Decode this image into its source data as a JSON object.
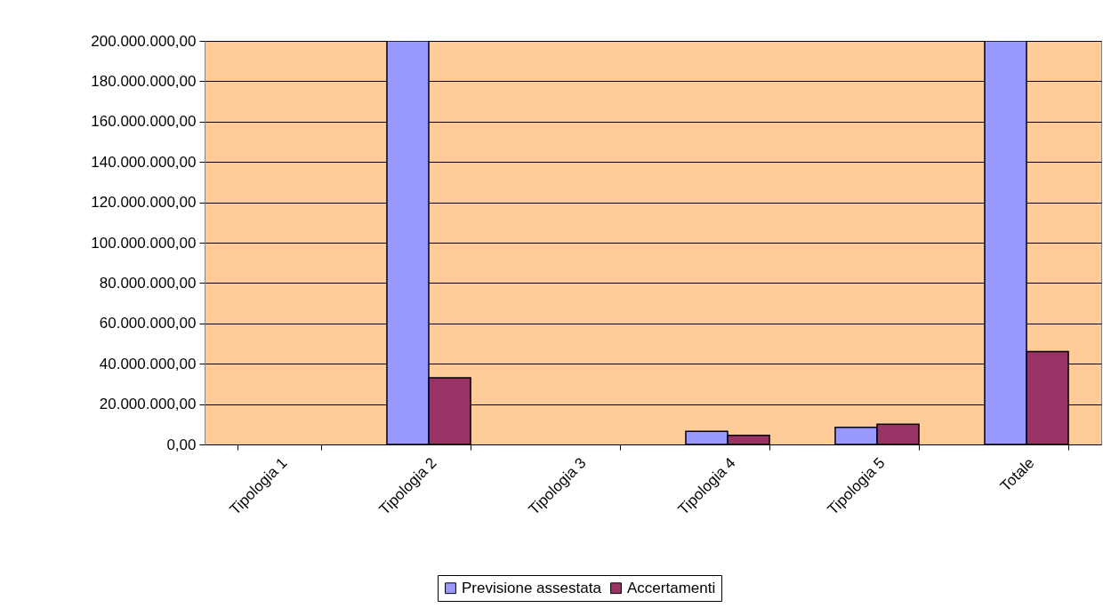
{
  "chart_data": {
    "type": "bar",
    "categories": [
      "Tipologia 1",
      "Tipologia 2",
      "Tipologia 3",
      "Tipologia 4",
      "Tipologia 5",
      "Totale"
    ],
    "series": [
      {
        "name": "Previsione assestata",
        "color": "#9999ff",
        "values": [
          null,
          200000000,
          null,
          6500000,
          8500000,
          200000000
        ]
      },
      {
        "name": "Accertamenti",
        "color": "#993366",
        "values": [
          null,
          33000000,
          null,
          4500000,
          10000000,
          46000000
        ]
      }
    ],
    "ylim": [
      0,
      200000000
    ],
    "yticks": [
      {
        "value": 0,
        "label": "0,00"
      },
      {
        "value": 20000000,
        "label": "20.000.000,00"
      },
      {
        "value": 40000000,
        "label": "40.000.000,00"
      },
      {
        "value": 60000000,
        "label": "60.000.000,00"
      },
      {
        "value": 80000000,
        "label": "80.000.000,00"
      },
      {
        "value": 100000000,
        "label": "100.000.000,00"
      },
      {
        "value": 120000000,
        "label": "120.000.000,00"
      },
      {
        "value": 140000000,
        "label": "140.000.000,00"
      },
      {
        "value": 160000000,
        "label": "160.000.000,00"
      },
      {
        "value": 180000000,
        "label": "180.000.000,00"
      },
      {
        "value": 200000000,
        "label": "200.000.000,00"
      }
    ],
    "grid": "y",
    "legend": "bottom"
  }
}
